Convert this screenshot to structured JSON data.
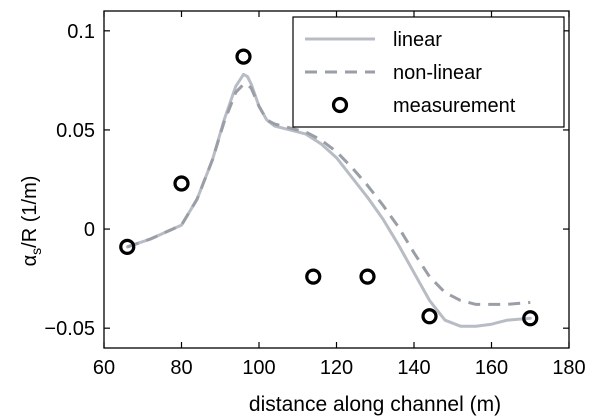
{
  "chart_data": {
    "type": "line",
    "title": "",
    "xlabel": "distance along channel (m)",
    "ylabel_main": "α",
    "ylabel_sub": "s",
    "ylabel_rest": "/R (1/m)",
    "xlim": [
      60,
      180
    ],
    "ylim": [
      -0.06,
      0.11
    ],
    "xticks": [
      60,
      80,
      100,
      120,
      140,
      160,
      180
    ],
    "xtick_labels": [
      "60",
      "80",
      "100",
      "120",
      "140",
      "160",
      "180"
    ],
    "yticks": [
      -0.05,
      0,
      0.05,
      0.1
    ],
    "ytick_labels": [
      "−0.05",
      "0",
      "0.05",
      "0.1"
    ],
    "grid": false,
    "legend_position": "top-right",
    "series": [
      {
        "name": "linear",
        "kind": "line",
        "style": "solid",
        "color": "#b8bcc4",
        "x": [
          66,
          72,
          80,
          84,
          88,
          91,
          94,
          96,
          97,
          98,
          100,
          102,
          104,
          108,
          112,
          116,
          120,
          124,
          128,
          132,
          136,
          140,
          144,
          148,
          152,
          156,
          160,
          164,
          170
        ],
        "y": [
          -0.009,
          -0.005,
          0.002,
          0.015,
          0.035,
          0.055,
          0.072,
          0.078,
          0.077,
          0.073,
          0.062,
          0.055,
          0.052,
          0.05,
          0.048,
          0.043,
          0.036,
          0.026,
          0.016,
          0.005,
          -0.008,
          -0.022,
          -0.036,
          -0.046,
          -0.049,
          -0.049,
          -0.048,
          -0.046,
          -0.045
        ]
      },
      {
        "name": "non-linear",
        "kind": "line",
        "style": "dashed",
        "color": "#9a9ea6",
        "x": [
          66,
          72,
          80,
          84,
          88,
          91,
          94,
          96,
          97,
          98,
          100,
          102,
          104,
          108,
          112,
          116,
          120,
          124,
          128,
          132,
          136,
          140,
          144,
          148,
          152,
          156,
          160,
          164,
          170
        ],
        "y": [
          -0.009,
          -0.005,
          0.002,
          0.015,
          0.035,
          0.054,
          0.069,
          0.073,
          0.073,
          0.071,
          0.062,
          0.055,
          0.053,
          0.051,
          0.049,
          0.045,
          0.039,
          0.031,
          0.022,
          0.012,
          0.001,
          -0.012,
          -0.024,
          -0.032,
          -0.036,
          -0.038,
          -0.038,
          -0.038,
          -0.037
        ]
      },
      {
        "name": "measurement",
        "kind": "scatter",
        "marker": "circle",
        "color": "#000000",
        "x": [
          66,
          80,
          96,
          114,
          128,
          144,
          170
        ],
        "y": [
          -0.009,
          0.023,
          0.087,
          -0.024,
          -0.024,
          -0.044,
          -0.045
        ]
      }
    ]
  }
}
